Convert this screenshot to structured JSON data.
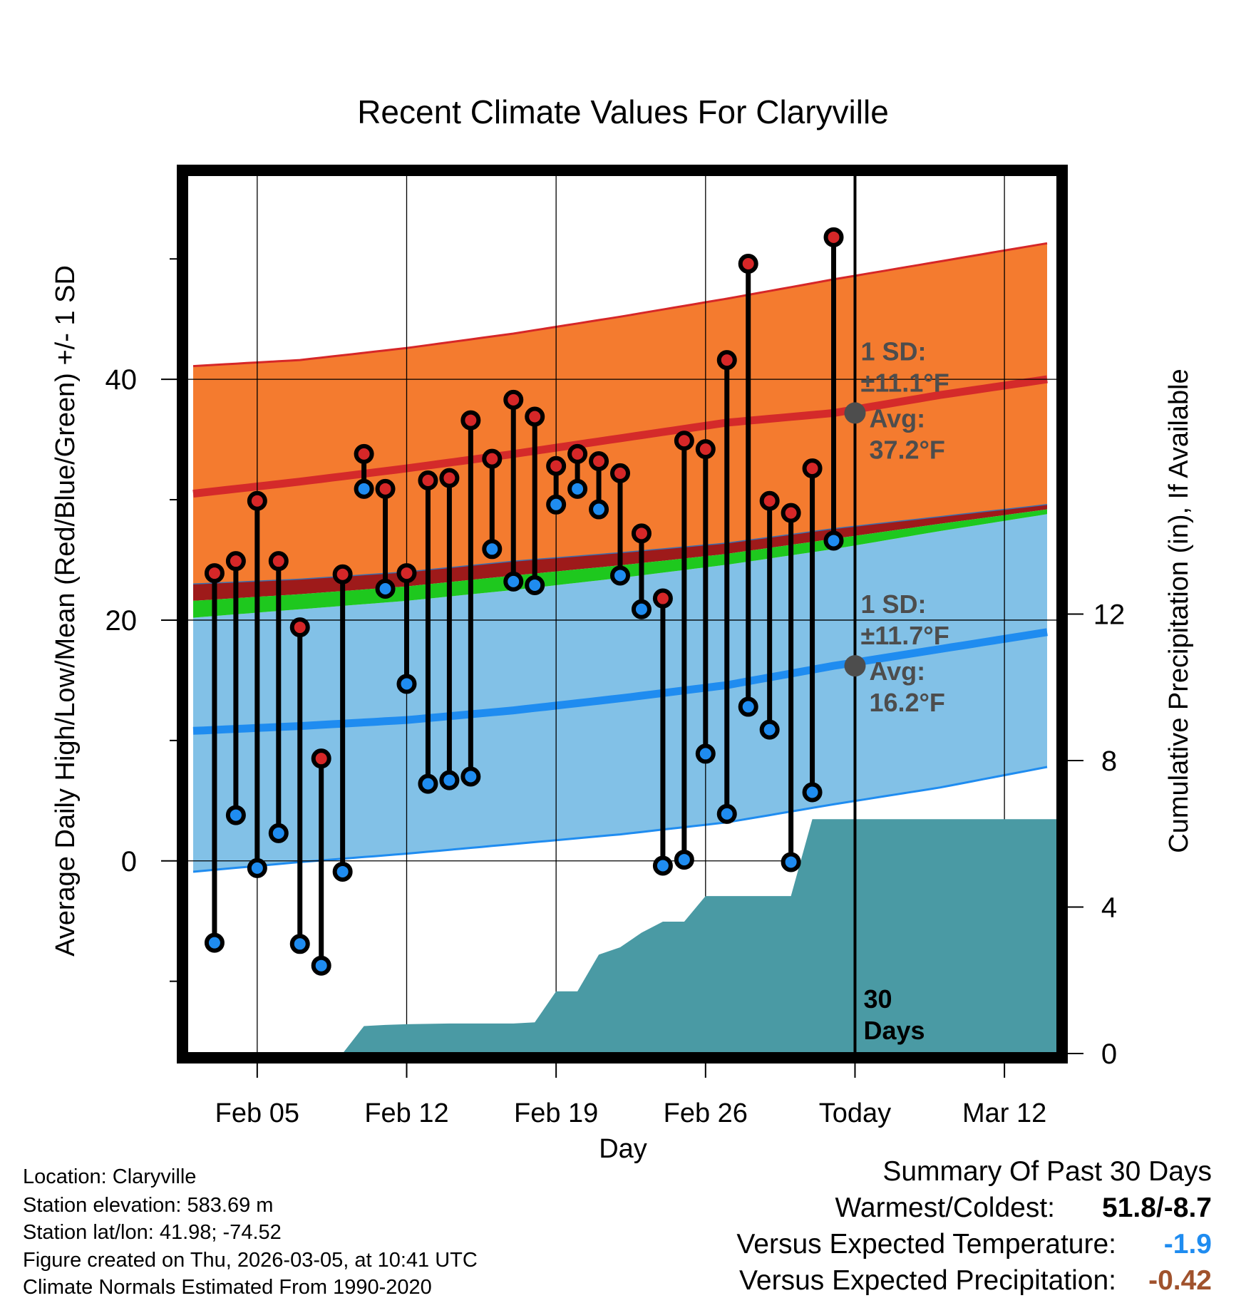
{
  "colors": {
    "high_band": "#f47b2f",
    "high_band_edge": "#d62728",
    "high_mean_line": "#d42a2a",
    "low_band": "#82c1e7",
    "low_band_edge": "#1f8cf0",
    "low_mean_line": "#1f8cf0",
    "mean_band": "#1ec81e",
    "mean_band_dark": "#9e1a1a",
    "precip_fill": "#4a9aa4",
    "high_marker": "#d62728",
    "low_marker": "#1f8cf0",
    "annotation": "#4d4d4d",
    "versus_temp": "#1f8cf0",
    "versus_precip": "#a0522d"
  },
  "chart_data": {
    "type": "line",
    "title": "Recent Climate Values For Claryville",
    "xlabel": "Day",
    "ylabel_left": "Average Daily High/Low/Mean (Red/Blue/Green) +/- 1 SD",
    "ylabel_right": "Cumulative Precipitation (in), If Available",
    "x_domain_days": [
      -0.3,
      40.5
    ],
    "ylim_left": [
      -16,
      57
    ],
    "ylim_right": [
      0,
      24
    ],
    "x_ticks": [
      {
        "day": 3,
        "label": "Feb 05"
      },
      {
        "day": 10,
        "label": "Feb 12"
      },
      {
        "day": 17,
        "label": "Feb 19"
      },
      {
        "day": 24,
        "label": "Feb 26"
      },
      {
        "day": 31,
        "label": "Today"
      },
      {
        "day": 38,
        "label": "Mar 12"
      }
    ],
    "y_left_ticks": [
      0,
      20,
      40
    ],
    "y_left_minor_ticks": [
      -10,
      10,
      30,
      50
    ],
    "y_right_ticks": [
      0,
      4,
      8,
      12
    ],
    "today_day": 31,
    "normals_x": [
      0,
      5,
      10,
      15,
      20,
      25,
      30,
      35,
      40
    ],
    "normal_high": {
      "mean": [
        30.5,
        31.5,
        32.6,
        33.8,
        35.1,
        36.4,
        37.2,
        38.7,
        40.0
      ],
      "upper": [
        41.1,
        41.6,
        42.6,
        43.8,
        45.2,
        46.7,
        48.3,
        49.8,
        51.3
      ],
      "lower": [
        23.0,
        23.4,
        24.0,
        24.9,
        25.6,
        26.4,
        27.6,
        28.6,
        29.6
      ]
    },
    "normal_mean": {
      "upper": [
        23.0,
        23.4,
        24.0,
        24.9,
        25.6,
        26.4,
        27.6,
        28.6,
        29.6
      ],
      "lower": [
        20.2,
        20.9,
        21.6,
        22.5,
        23.5,
        24.6,
        25.9,
        27.4,
        28.8
      ]
    },
    "normal_low": {
      "mean": [
        10.8,
        11.2,
        11.7,
        12.5,
        13.5,
        14.6,
        16.2,
        17.6,
        19.0
      ],
      "upper": [
        20.2,
        20.9,
        21.6,
        22.5,
        23.5,
        24.6,
        25.9,
        27.4,
        28.8
      ],
      "lower": [
        -0.9,
        -0.1,
        0.6,
        1.4,
        2.2,
        3.2,
        4.7,
        6.1,
        7.8
      ]
    },
    "daily_days": [
      1,
      2,
      3,
      4,
      5,
      6,
      7,
      8,
      9,
      10,
      11,
      12,
      13,
      14,
      15,
      16,
      17,
      18,
      19,
      20,
      21,
      22,
      23,
      24,
      25,
      26,
      27,
      28,
      29,
      30
    ],
    "daily_high": [
      23.9,
      24.9,
      29.9,
      24.9,
      19.4,
      8.5,
      23.8,
      33.8,
      30.9,
      23.9,
      31.6,
      31.8,
      36.6,
      33.4,
      38.3,
      36.9,
      32.8,
      33.8,
      33.2,
      32.2,
      27.2,
      21.8,
      34.9,
      34.2,
      41.6,
      49.6,
      29.9,
      28.9,
      32.6,
      51.8
    ],
    "daily_low": [
      -6.8,
      3.8,
      -0.6,
      2.3,
      -6.9,
      -8.7,
      -0.9,
      30.9,
      22.6,
      14.7,
      6.4,
      6.7,
      7.0,
      25.9,
      23.2,
      22.9,
      29.6,
      30.9,
      29.2,
      23.7,
      20.9,
      -0.4,
      0.1,
      8.9,
      3.9,
      12.8,
      10.9,
      -0.1,
      5.7,
      26.6
    ],
    "precip_x": [
      0,
      7,
      8,
      9,
      10,
      12,
      14,
      15,
      16,
      17,
      18,
      19,
      20,
      21,
      22,
      23,
      24,
      25,
      26,
      27,
      28,
      29,
      30,
      31,
      40.5
    ],
    "precip_cumulative": [
      0,
      0,
      0.75,
      0.78,
      0.8,
      0.82,
      0.82,
      0.82,
      0.85,
      1.7,
      1.7,
      2.7,
      2.9,
      3.3,
      3.6,
      3.6,
      4.3,
      4.3,
      4.3,
      4.3,
      4.3,
      6.4,
      6.4,
      6.4,
      6.4
    ],
    "annotations": [
      {
        "line1": "1 SD:",
        "line2": "±11.1°F",
        "line3": "Avg:",
        "line4": "37.2°F",
        "avg_value": 37.2
      },
      {
        "line1": "1 SD:",
        "line2": "±11.7°F",
        "line3": "Avg:",
        "line4": "16.2°F",
        "avg_value": 16.2
      }
    ],
    "window_label_1": "30",
    "window_label_2": "Days"
  },
  "info": {
    "location": "Location: Claryville",
    "elevation": "Station elevation: 583.69 m",
    "latlon": "Station lat/lon: 41.98; -74.52",
    "created": "Figure created on Thu, 2026-03-05, at 10:41 UTC",
    "normals": "Climate Normals Estimated From 1990-2020"
  },
  "summary": {
    "title": "Summary Of Past 30 Days",
    "warm_cold_label": "Warmest/Coldest:",
    "warm_cold_value": "51.8/-8.7",
    "versus_temp_label": "Versus Expected Temperature:",
    "versus_temp_value": "-1.9",
    "versus_precip_label": "Versus Expected Precipitation:",
    "versus_precip_value": "-0.42"
  }
}
